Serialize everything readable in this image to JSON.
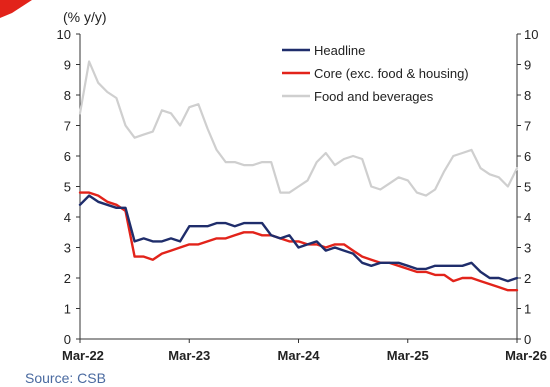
{
  "chart_data": {
    "type": "line",
    "unit_label": "(% y/y)",
    "source": "Source: CSB",
    "ylim": [
      0,
      10
    ],
    "yticks": [
      0,
      1,
      2,
      3,
      4,
      5,
      6,
      7,
      8,
      9,
      10
    ],
    "xlim": [
      "2022-03",
      "2026-03"
    ],
    "x_tick_labels": [
      "Mar-22",
      "Mar-23",
      "Mar-24",
      "Mar-25",
      "Mar-26"
    ],
    "x_tick_dates": [
      "2022-03",
      "2023-03",
      "2024-03",
      "2025-03",
      "2026-03"
    ],
    "dual_y_axis": true,
    "grid": false,
    "legend_position": "top-right",
    "x": [
      "2022-03",
      "2022-04",
      "2022-05",
      "2022-06",
      "2022-07",
      "2022-08",
      "2022-09",
      "2022-10",
      "2022-11",
      "2022-12",
      "2023-01",
      "2023-02",
      "2023-03",
      "2023-04",
      "2023-05",
      "2023-06",
      "2023-07",
      "2023-08",
      "2023-09",
      "2023-10",
      "2023-11",
      "2023-12",
      "2024-01",
      "2024-02",
      "2024-03",
      "2024-04",
      "2024-05",
      "2024-06",
      "2024-07",
      "2024-08",
      "2024-09",
      "2024-10",
      "2024-11",
      "2024-12",
      "2025-01",
      "2025-02",
      "2025-03",
      "2025-04",
      "2025-05",
      "2025-06",
      "2025-07",
      "2025-08",
      "2025-09",
      "2025-10",
      "2025-11",
      "2025-12",
      "2026-01",
      "2026-02",
      "2026-03"
    ],
    "series": [
      {
        "name": "Headline",
        "color": "#1f2d6b",
        "values": [
          4.4,
          4.7,
          4.5,
          4.4,
          4.3,
          4.3,
          3.2,
          3.3,
          3.2,
          3.2,
          3.3,
          3.2,
          3.7,
          3.7,
          3.7,
          3.8,
          3.8,
          3.7,
          3.8,
          3.8,
          3.8,
          3.4,
          3.3,
          3.4,
          3.0,
          3.1,
          3.2,
          2.9,
          3.0,
          2.9,
          2.8,
          2.5,
          2.4,
          2.5,
          2.5,
          2.5,
          2.4,
          2.3,
          2.3,
          2.4,
          2.4,
          2.4,
          2.4,
          2.5,
          2.2,
          2.0,
          2.0,
          1.9,
          2.0
        ]
      },
      {
        "name": "Core (exc. food & housing)",
        "color": "#e2231a",
        "values": [
          4.8,
          4.8,
          4.7,
          4.5,
          4.4,
          4.2,
          2.7,
          2.7,
          2.6,
          2.8,
          2.9,
          3.0,
          3.1,
          3.1,
          3.2,
          3.3,
          3.3,
          3.4,
          3.5,
          3.5,
          3.4,
          3.4,
          3.3,
          3.2,
          3.2,
          3.1,
          3.1,
          3.0,
          3.1,
          3.1,
          2.9,
          2.7,
          2.6,
          2.5,
          2.5,
          2.4,
          2.3,
          2.2,
          2.2,
          2.1,
          2.1,
          1.9,
          2.0,
          2.0,
          1.9,
          1.8,
          1.7,
          1.6,
          1.6
        ]
      },
      {
        "name": "Food and beverages",
        "color": "#cfcfcf",
        "values": [
          7.4,
          9.1,
          8.4,
          8.1,
          7.9,
          7.0,
          6.6,
          6.7,
          6.8,
          7.5,
          7.4,
          7.0,
          7.6,
          7.7,
          6.9,
          6.2,
          5.8,
          5.8,
          5.7,
          5.7,
          5.8,
          5.8,
          4.8,
          4.8,
          5.0,
          5.2,
          5.8,
          6.1,
          5.7,
          5.9,
          6.0,
          5.9,
          5.0,
          4.9,
          5.1,
          5.3,
          5.2,
          4.8,
          4.7,
          4.9,
          5.5,
          6.0,
          6.1,
          6.2,
          5.6,
          5.4,
          5.3,
          5.0,
          5.6
        ]
      }
    ]
  }
}
